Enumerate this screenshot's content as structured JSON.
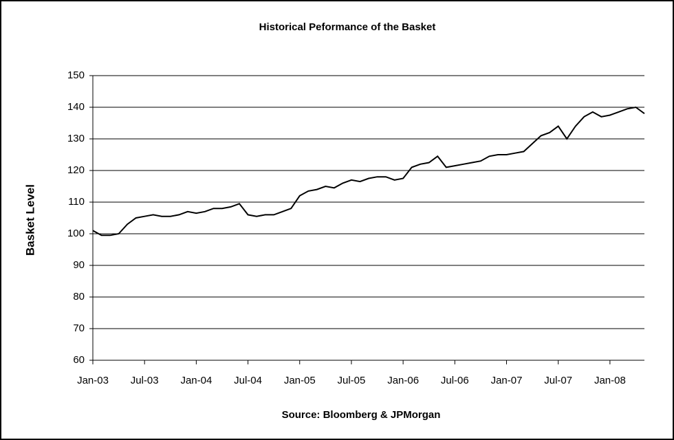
{
  "chart_data": {
    "type": "line",
    "title": "Historical Peformance of the Basket",
    "x_label": "Source: Bloomberg & JPMorgan",
    "y_label": "Basket Level",
    "x": [
      "2003-01",
      "2003-02",
      "2003-03",
      "2003-04",
      "2003-05",
      "2003-06",
      "2003-07",
      "2003-08",
      "2003-09",
      "2003-10",
      "2003-11",
      "2003-12",
      "2004-01",
      "2004-02",
      "2004-03",
      "2004-04",
      "2004-05",
      "2004-06",
      "2004-07",
      "2004-08",
      "2004-09",
      "2004-10",
      "2004-11",
      "2004-12",
      "2005-01",
      "2005-02",
      "2005-03",
      "2005-04",
      "2005-05",
      "2005-06",
      "2005-07",
      "2005-08",
      "2005-09",
      "2005-10",
      "2005-11",
      "2005-12",
      "2006-01",
      "2006-02",
      "2006-03",
      "2006-04",
      "2006-05",
      "2006-06",
      "2006-07",
      "2006-08",
      "2006-09",
      "2006-10",
      "2006-11",
      "2006-12",
      "2007-01",
      "2007-02",
      "2007-03",
      "2007-04",
      "2007-05",
      "2007-06",
      "2007-07",
      "2007-08",
      "2007-09",
      "2007-10",
      "2007-11",
      "2007-12",
      "2008-01",
      "2008-02",
      "2008-03",
      "2008-04",
      "2008-05"
    ],
    "series": [
      {
        "name": "Basket",
        "color": "#000000",
        "values": [
          101,
          99.5,
          99.5,
          100,
          103,
          105,
          105.5,
          106,
          105.5,
          105.5,
          106,
          107,
          106.5,
          107,
          108,
          108,
          108.5,
          109.5,
          106,
          105.5,
          106,
          106,
          107,
          108,
          112,
          113.5,
          114,
          115,
          114.5,
          116,
          117,
          116.5,
          117.5,
          118,
          118,
          117,
          117.5,
          121,
          122,
          122.5,
          124.5,
          121,
          121.5,
          122,
          122.5,
          123,
          124.5,
          125,
          125,
          125.5,
          126,
          128.5,
          131,
          132,
          134,
          130,
          134,
          137,
          138.5,
          137,
          137.5,
          138.5,
          139.5,
          140,
          138
        ]
      }
    ],
    "xlim": [
      "2003-01",
      "2008-05"
    ],
    "xticks": [
      {
        "value": "2003-01",
        "label": "Jan-03"
      },
      {
        "value": "2003-07",
        "label": "Jul-03"
      },
      {
        "value": "2004-01",
        "label": "Jan-04"
      },
      {
        "value": "2004-07",
        "label": "Jul-04"
      },
      {
        "value": "2005-01",
        "label": "Jan-05"
      },
      {
        "value": "2005-07",
        "label": "Jul-05"
      },
      {
        "value": "2006-01",
        "label": "Jan-06"
      },
      {
        "value": "2006-07",
        "label": "Jul-06"
      },
      {
        "value": "2007-01",
        "label": "Jan-07"
      },
      {
        "value": "2007-07",
        "label": "Jul-07"
      },
      {
        "value": "2008-01",
        "label": "Jan-08"
      }
    ],
    "ylim": [
      60,
      150
    ],
    "yticks": [
      60,
      70,
      80,
      90,
      100,
      110,
      120,
      130,
      140,
      150
    ],
    "grid": true
  }
}
